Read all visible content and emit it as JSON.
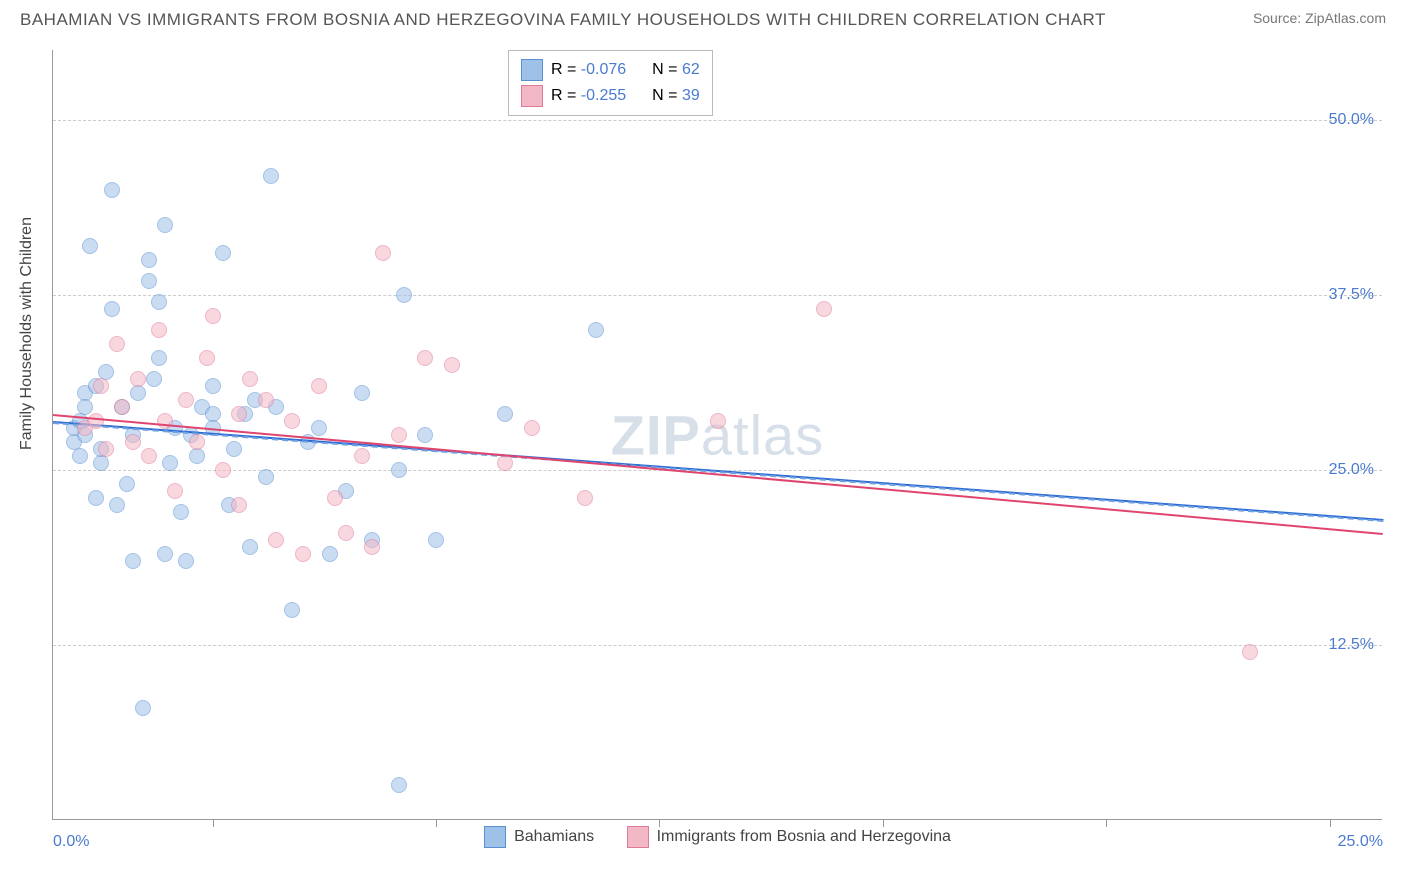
{
  "header": {
    "title": "BAHAMIAN VS IMMIGRANTS FROM BOSNIA AND HERZEGOVINA FAMILY HOUSEHOLDS WITH CHILDREN CORRELATION CHART",
    "source": "Source: ZipAtlas.com"
  },
  "ylabel": "Family Households with Children",
  "watermark": {
    "bold": "ZIP",
    "rest": "atlas"
  },
  "chart": {
    "type": "scatter",
    "xlim": [
      0,
      25
    ],
    "ylim": [
      0,
      55
    ],
    "yticks": [
      {
        "v": 12.5,
        "label": "12.5%"
      },
      {
        "v": 25.0,
        "label": "25.0%"
      },
      {
        "v": 37.5,
        "label": "37.5%"
      },
      {
        "v": 50.0,
        "label": "50.0%"
      }
    ],
    "xticks_major": [
      0,
      25
    ],
    "xticks_minor": [
      3.0,
      7.2,
      11.4,
      15.6,
      19.8,
      24.0
    ],
    "xtick_labels": {
      "0": "0.0%",
      "25": "25.0%"
    },
    "marker_radius": 8,
    "marker_stroke_width": 1.3,
    "series": [
      {
        "name": "Bahamians",
        "fill": "#9ec1e8",
        "stroke": "#5a8fd0",
        "fill_opacity": 0.55,
        "r_label": "R = ",
        "r_value": "-0.076",
        "n_label": "N = ",
        "n_value": "62",
        "trend": {
          "color": "#2b6bd4",
          "dash_color": "#6fa0e0",
          "y_at_xmin": 28.5,
          "y_at_xmax": 21.5
        },
        "points": [
          [
            0.4,
            27.0
          ],
          [
            0.4,
            28.0
          ],
          [
            0.5,
            28.5
          ],
          [
            0.5,
            26.0
          ],
          [
            0.6,
            30.5
          ],
          [
            0.6,
            29.5
          ],
          [
            0.6,
            27.5
          ],
          [
            0.7,
            41.0
          ],
          [
            0.8,
            23.0
          ],
          [
            0.8,
            31.0
          ],
          [
            0.9,
            25.5
          ],
          [
            0.9,
            26.5
          ],
          [
            1.0,
            32.0
          ],
          [
            1.1,
            36.5
          ],
          [
            1.1,
            45.0
          ],
          [
            1.2,
            22.5
          ],
          [
            1.3,
            29.5
          ],
          [
            1.4,
            24.0
          ],
          [
            1.5,
            27.5
          ],
          [
            1.5,
            18.5
          ],
          [
            1.6,
            30.5
          ],
          [
            1.7,
            8.0
          ],
          [
            1.8,
            38.5
          ],
          [
            1.8,
            40.0
          ],
          [
            1.9,
            31.5
          ],
          [
            2.0,
            37.0
          ],
          [
            2.0,
            33.0
          ],
          [
            2.1,
            19.0
          ],
          [
            2.1,
            42.5
          ],
          [
            2.2,
            25.5
          ],
          [
            2.3,
            28.0
          ],
          [
            2.4,
            22.0
          ],
          [
            2.5,
            18.5
          ],
          [
            2.6,
            27.5
          ],
          [
            2.7,
            26.0
          ],
          [
            2.8,
            29.5
          ],
          [
            3.0,
            31.0
          ],
          [
            3.0,
            29.0
          ],
          [
            3.0,
            28.0
          ],
          [
            3.2,
            40.5
          ],
          [
            3.3,
            22.5
          ],
          [
            3.4,
            26.5
          ],
          [
            3.6,
            29.0
          ],
          [
            3.7,
            19.5
          ],
          [
            3.8,
            30.0
          ],
          [
            4.0,
            24.5
          ],
          [
            4.1,
            46.0
          ],
          [
            4.2,
            29.5
          ],
          [
            4.5,
            15.0
          ],
          [
            4.8,
            27.0
          ],
          [
            5.0,
            28.0
          ],
          [
            5.2,
            19.0
          ],
          [
            5.5,
            23.5
          ],
          [
            5.8,
            30.5
          ],
          [
            6.0,
            20.0
          ],
          [
            6.5,
            2.5
          ],
          [
            6.5,
            25.0
          ],
          [
            6.6,
            37.5
          ],
          [
            7.0,
            27.5
          ],
          [
            7.2,
            20.0
          ],
          [
            8.5,
            29.0
          ],
          [
            10.2,
            35.0
          ]
        ]
      },
      {
        "name": "Immigrants from Bosnia and Herzegovina",
        "fill": "#f3b8c6",
        "stroke": "#e07a9a",
        "fill_opacity": 0.55,
        "r_label": "R = ",
        "r_value": "-0.255",
        "n_label": "N = ",
        "n_value": "39",
        "trend": {
          "color": "#e0456f",
          "y_at_xmin": 29.0,
          "y_at_xmax": 20.5
        },
        "points": [
          [
            0.6,
            28.0
          ],
          [
            0.8,
            28.5
          ],
          [
            0.9,
            31.0
          ],
          [
            1.0,
            26.5
          ],
          [
            1.2,
            34.0
          ],
          [
            1.3,
            29.5
          ],
          [
            1.5,
            27.0
          ],
          [
            1.6,
            31.5
          ],
          [
            1.8,
            26.0
          ],
          [
            2.0,
            35.0
          ],
          [
            2.1,
            28.5
          ],
          [
            2.3,
            23.5
          ],
          [
            2.5,
            30.0
          ],
          [
            2.7,
            27.0
          ],
          [
            2.9,
            33.0
          ],
          [
            3.0,
            36.0
          ],
          [
            3.2,
            25.0
          ],
          [
            3.5,
            29.0
          ],
          [
            3.5,
            22.5
          ],
          [
            3.7,
            31.5
          ],
          [
            4.0,
            30.0
          ],
          [
            4.2,
            20.0
          ],
          [
            4.5,
            28.5
          ],
          [
            4.7,
            19.0
          ],
          [
            5.0,
            31.0
          ],
          [
            5.3,
            23.0
          ],
          [
            5.5,
            20.5
          ],
          [
            5.8,
            26.0
          ],
          [
            6.0,
            19.5
          ],
          [
            6.2,
            40.5
          ],
          [
            6.5,
            27.5
          ],
          [
            7.0,
            33.0
          ],
          [
            7.5,
            32.5
          ],
          [
            8.5,
            25.5
          ],
          [
            9.0,
            28.0
          ],
          [
            10.0,
            23.0
          ],
          [
            14.5,
            36.5
          ],
          [
            22.5,
            12.0
          ],
          [
            12.5,
            28.5
          ]
        ]
      }
    ]
  }
}
